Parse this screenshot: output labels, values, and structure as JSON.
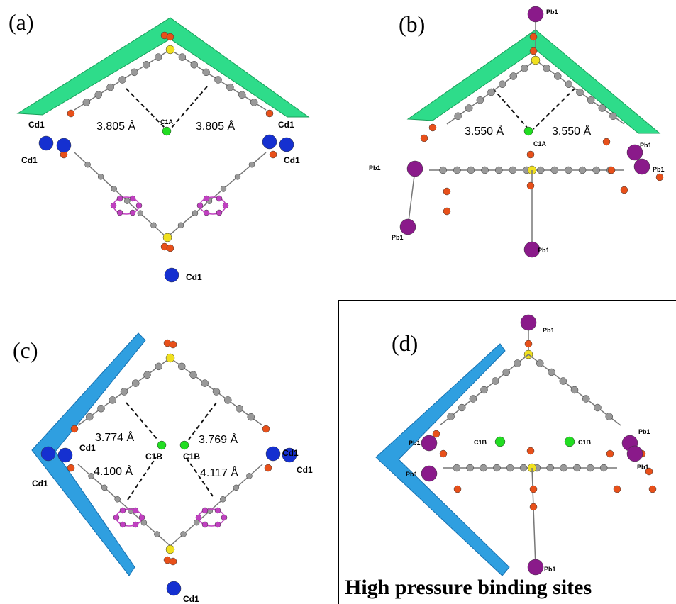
{
  "panels": [
    {
      "label": "(a)",
      "distances": [
        "3.805 Å",
        "3.805 Å"
      ],
      "atoms": [
        "Cd1",
        "Cd1",
        "Cd1",
        "Cd1",
        "Cd1",
        "C1A"
      ]
    },
    {
      "label": "(b)",
      "distances": [
        "3.550 Å",
        "3.550 Å"
      ],
      "atoms": [
        "Pb1",
        "C1A",
        "Pb1",
        "Pb1",
        "Pb1",
        "Pb1",
        "Pb1"
      ]
    },
    {
      "label": "(c)",
      "distances": [
        "3.774 Å",
        "3.769 Å",
        "4.100 Å",
        "4.117 Å"
      ],
      "atoms": [
        "C1B",
        "C1B",
        "Cd1",
        "Cd1",
        "Cd1",
        "Cd1",
        "Cd1"
      ]
    },
    {
      "label": "(d)",
      "atoms": [
        "Pb1",
        "Pb1",
        "C1B",
        "C1B",
        "Pb1",
        "Pb1",
        "Pb1",
        "Pb1"
      ],
      "caption": "High pressure binding sites"
    }
  ]
}
